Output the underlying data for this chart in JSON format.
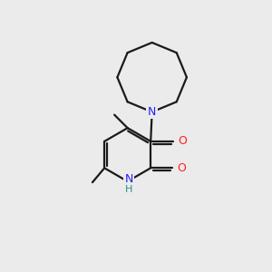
{
  "background_color": "#ebebeb",
  "bond_color": "#1a1a1a",
  "nitrogen_color": "#2020ff",
  "oxygen_color": "#ff2020",
  "nh_n_color": "#2020ff",
  "nh_h_color": "#2a9090",
  "figsize": [
    3.0,
    3.0
  ],
  "dpi": 100,
  "lw": 1.6,
  "n_azocane": 8,
  "ring_r": 1.3,
  "py_r": 1.0,
  "xlim": [
    0,
    10
  ],
  "ylim": [
    0,
    10
  ]
}
